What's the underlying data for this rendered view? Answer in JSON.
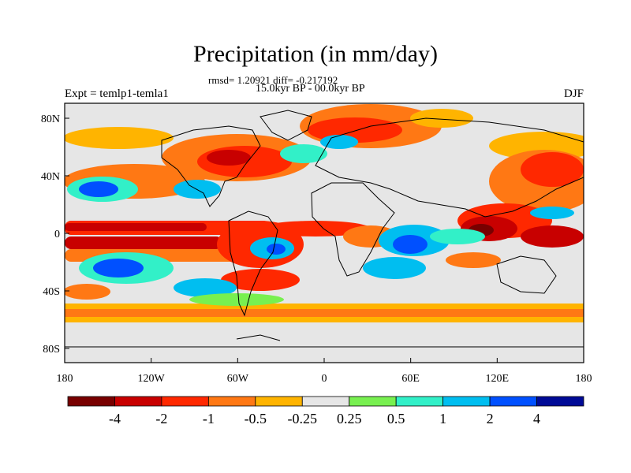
{
  "title": "Precipitation (in mm/day)",
  "stats": "rmsd= 1.20921 diff= -0.217192",
  "period": "15.0kyr BP - 00.0kyr BP",
  "experiment": "Expt = temlp1-temla1",
  "season": "DJF",
  "x_ticks": [
    "180",
    "120W",
    "60W",
    "0",
    "60E",
    "120E",
    "180"
  ],
  "y_ticks": [
    "80N",
    "40N",
    "0",
    "40S",
    "80S"
  ],
  "colorbar": {
    "colors": [
      "#780000",
      "#c80000",
      "#ff2800",
      "#ff7814",
      "#ffb400",
      "#e6e6e6",
      "#78f050",
      "#32f0c8",
      "#00bef0",
      "#0050ff",
      "#000a96"
    ],
    "labels": [
      "-4",
      "-2",
      "-1",
      "-0.5",
      "-0.25",
      "0.25",
      "0.5",
      "1",
      "2",
      "4"
    ]
  },
  "map_colors": {
    "neutral": "#e6e6e6",
    "light_orange": "#ffb400",
    "orange": "#ff7814",
    "red": "#ff2800",
    "dark_red": "#c80000",
    "maroon": "#780000",
    "green": "#78f050",
    "cyan": "#32f0c8",
    "sky": "#00bef0",
    "blue": "#0050ff",
    "navy": "#000a96"
  }
}
